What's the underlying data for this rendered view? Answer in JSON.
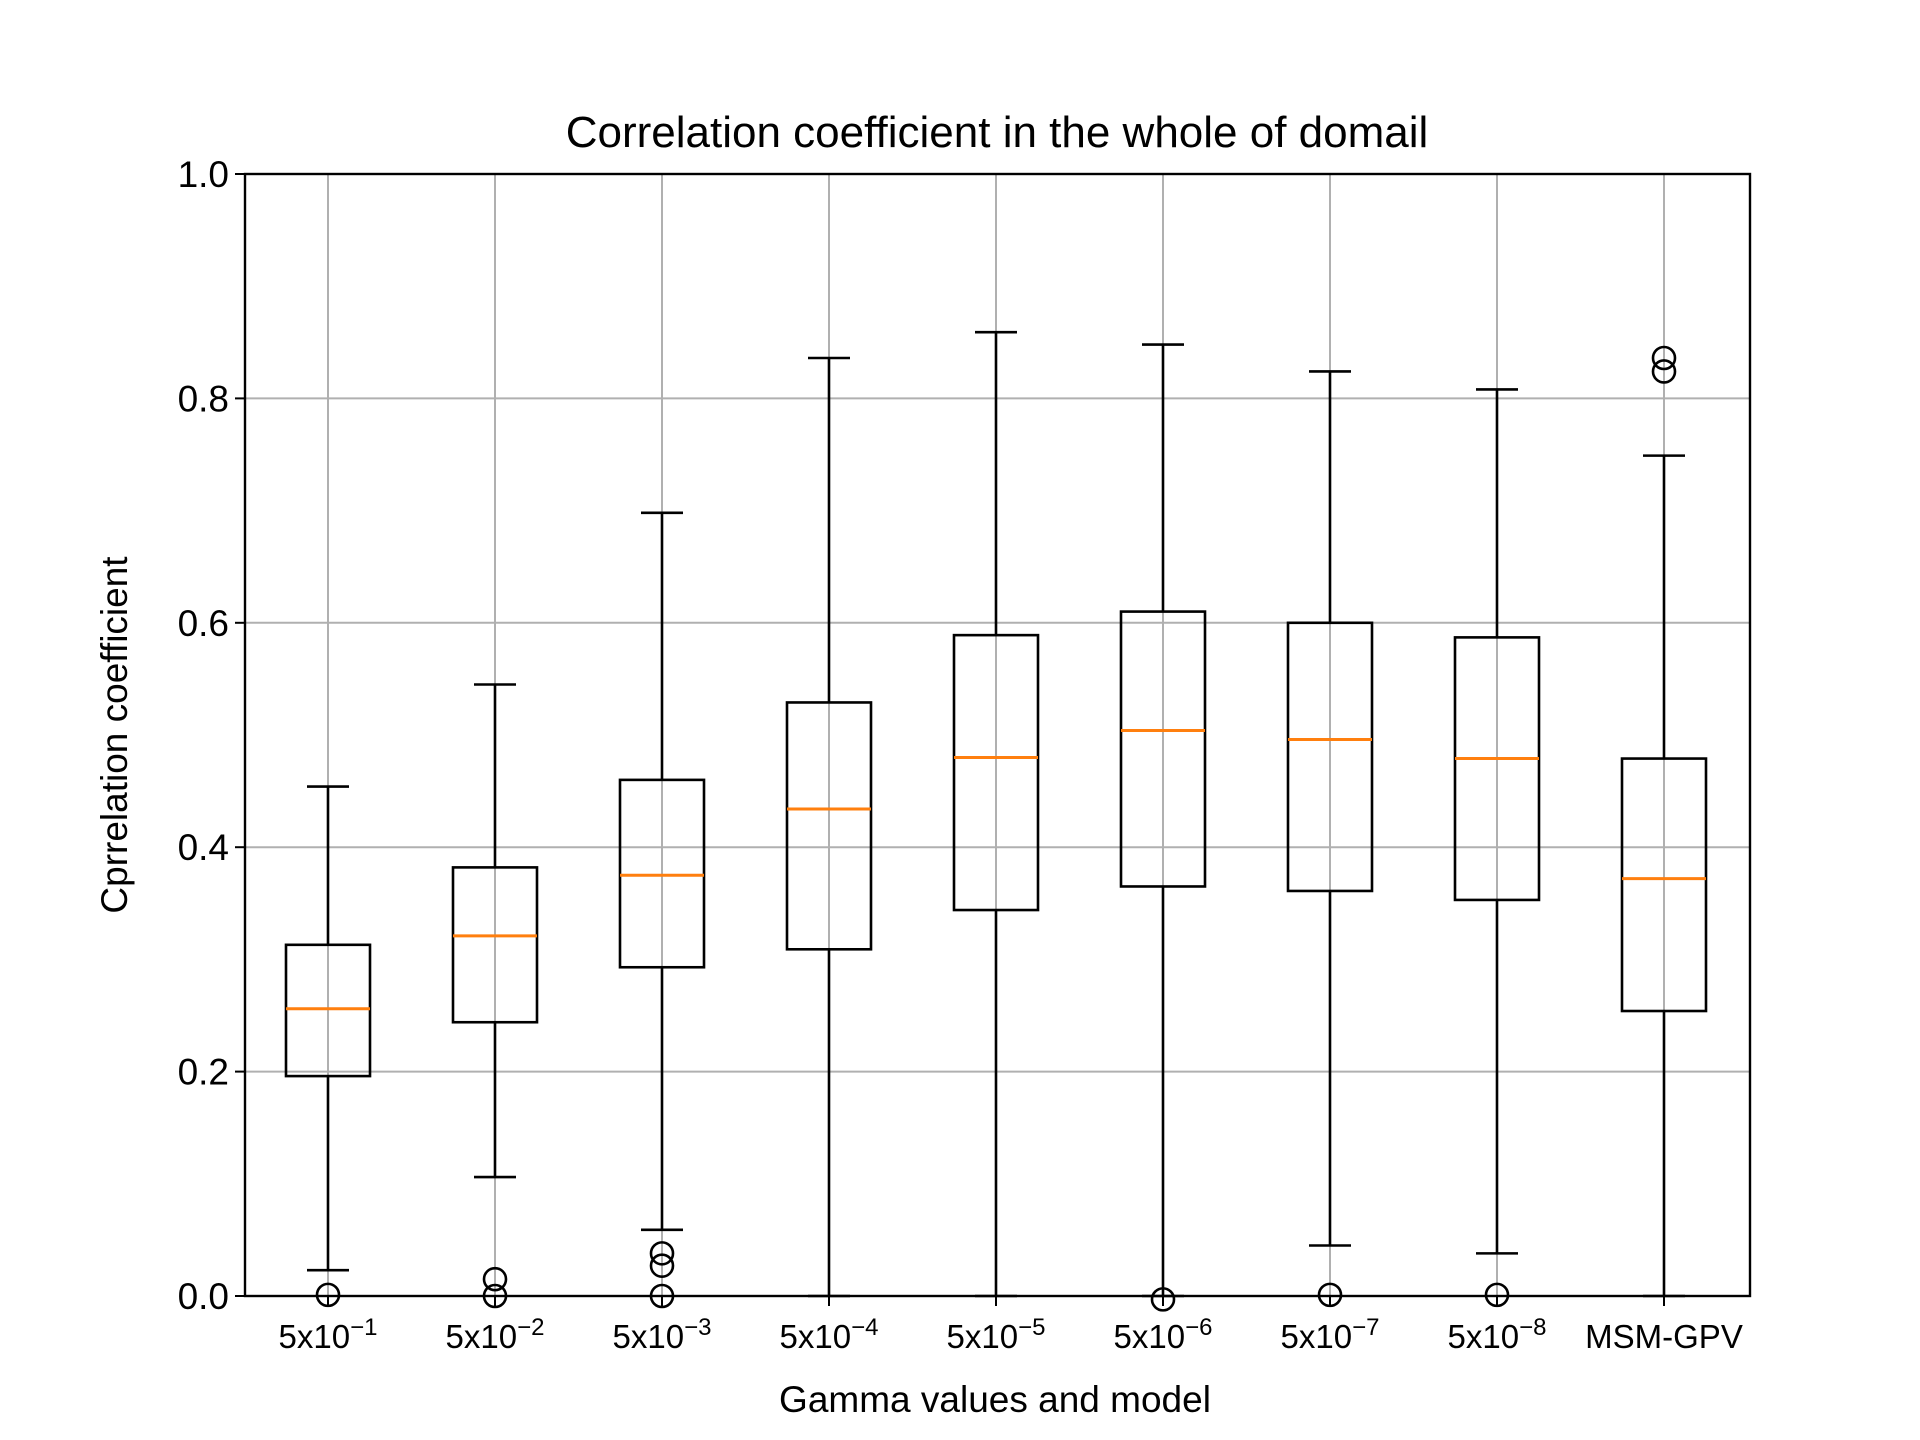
{
  "chart_data": {
    "type": "boxplot",
    "title": "Correlation coefficient in the whole of domail",
    "xlabel": "Gamma values and model",
    "ylabel": "Cprrelation coefficient",
    "ylim": [
      0.0,
      1.0
    ],
    "yticks": [
      "0.0",
      "0.2",
      "0.4",
      "0.6",
      "0.8",
      "1.0"
    ],
    "grid": true,
    "categories": [
      {
        "base": "5x10",
        "exp": "−1"
      },
      {
        "base": "5x10",
        "exp": "−2"
      },
      {
        "base": "5x10",
        "exp": "−3"
      },
      {
        "base": "5x10",
        "exp": "−4"
      },
      {
        "base": "5x10",
        "exp": "−5"
      },
      {
        "base": "5x10",
        "exp": "−6"
      },
      {
        "base": "5x10",
        "exp": "−7"
      },
      {
        "base": "5x10",
        "exp": "−8"
      },
      {
        "base": "MSM-GPV",
        "exp": ""
      }
    ],
    "boxes": [
      {
        "whisker_low": 0.023,
        "q1": 0.196,
        "median": 0.256,
        "q3": 0.313,
        "whisker_high": 0.454,
        "outliers": [
          0.001
        ]
      },
      {
        "whisker_low": 0.106,
        "q1": 0.244,
        "median": 0.321,
        "q3": 0.382,
        "whisker_high": 0.545,
        "outliers": [
          0.015,
          0.0
        ]
      },
      {
        "whisker_low": 0.059,
        "q1": 0.293,
        "median": 0.375,
        "q3": 0.46,
        "whisker_high": 0.698,
        "outliers": [
          0.038,
          0.027,
          0.0
        ]
      },
      {
        "whisker_low": 0.0,
        "q1": 0.309,
        "median": 0.434,
        "q3": 0.529,
        "whisker_high": 0.836,
        "outliers": []
      },
      {
        "whisker_low": 0.0,
        "q1": 0.344,
        "median": 0.48,
        "q3": 0.589,
        "whisker_high": 0.859,
        "outliers": []
      },
      {
        "whisker_low": 0.0,
        "q1": 0.365,
        "median": 0.504,
        "q3": 0.61,
        "whisker_high": 0.848,
        "outliers": [
          -0.003
        ]
      },
      {
        "whisker_low": 0.045,
        "q1": 0.361,
        "median": 0.496,
        "q3": 0.6,
        "whisker_high": 0.824,
        "outliers": [
          0.001
        ]
      },
      {
        "whisker_low": 0.038,
        "q1": 0.353,
        "median": 0.479,
        "q3": 0.587,
        "whisker_high": 0.808,
        "outliers": [
          0.001
        ]
      },
      {
        "whisker_low": 0.0,
        "q1": 0.254,
        "median": 0.372,
        "q3": 0.479,
        "whisker_high": 0.749,
        "outliers": [
          0.836,
          0.824
        ]
      }
    ],
    "colors": {
      "box": "#000000",
      "median": "#ff7f0e",
      "grid": "#b0b0b0"
    }
  }
}
